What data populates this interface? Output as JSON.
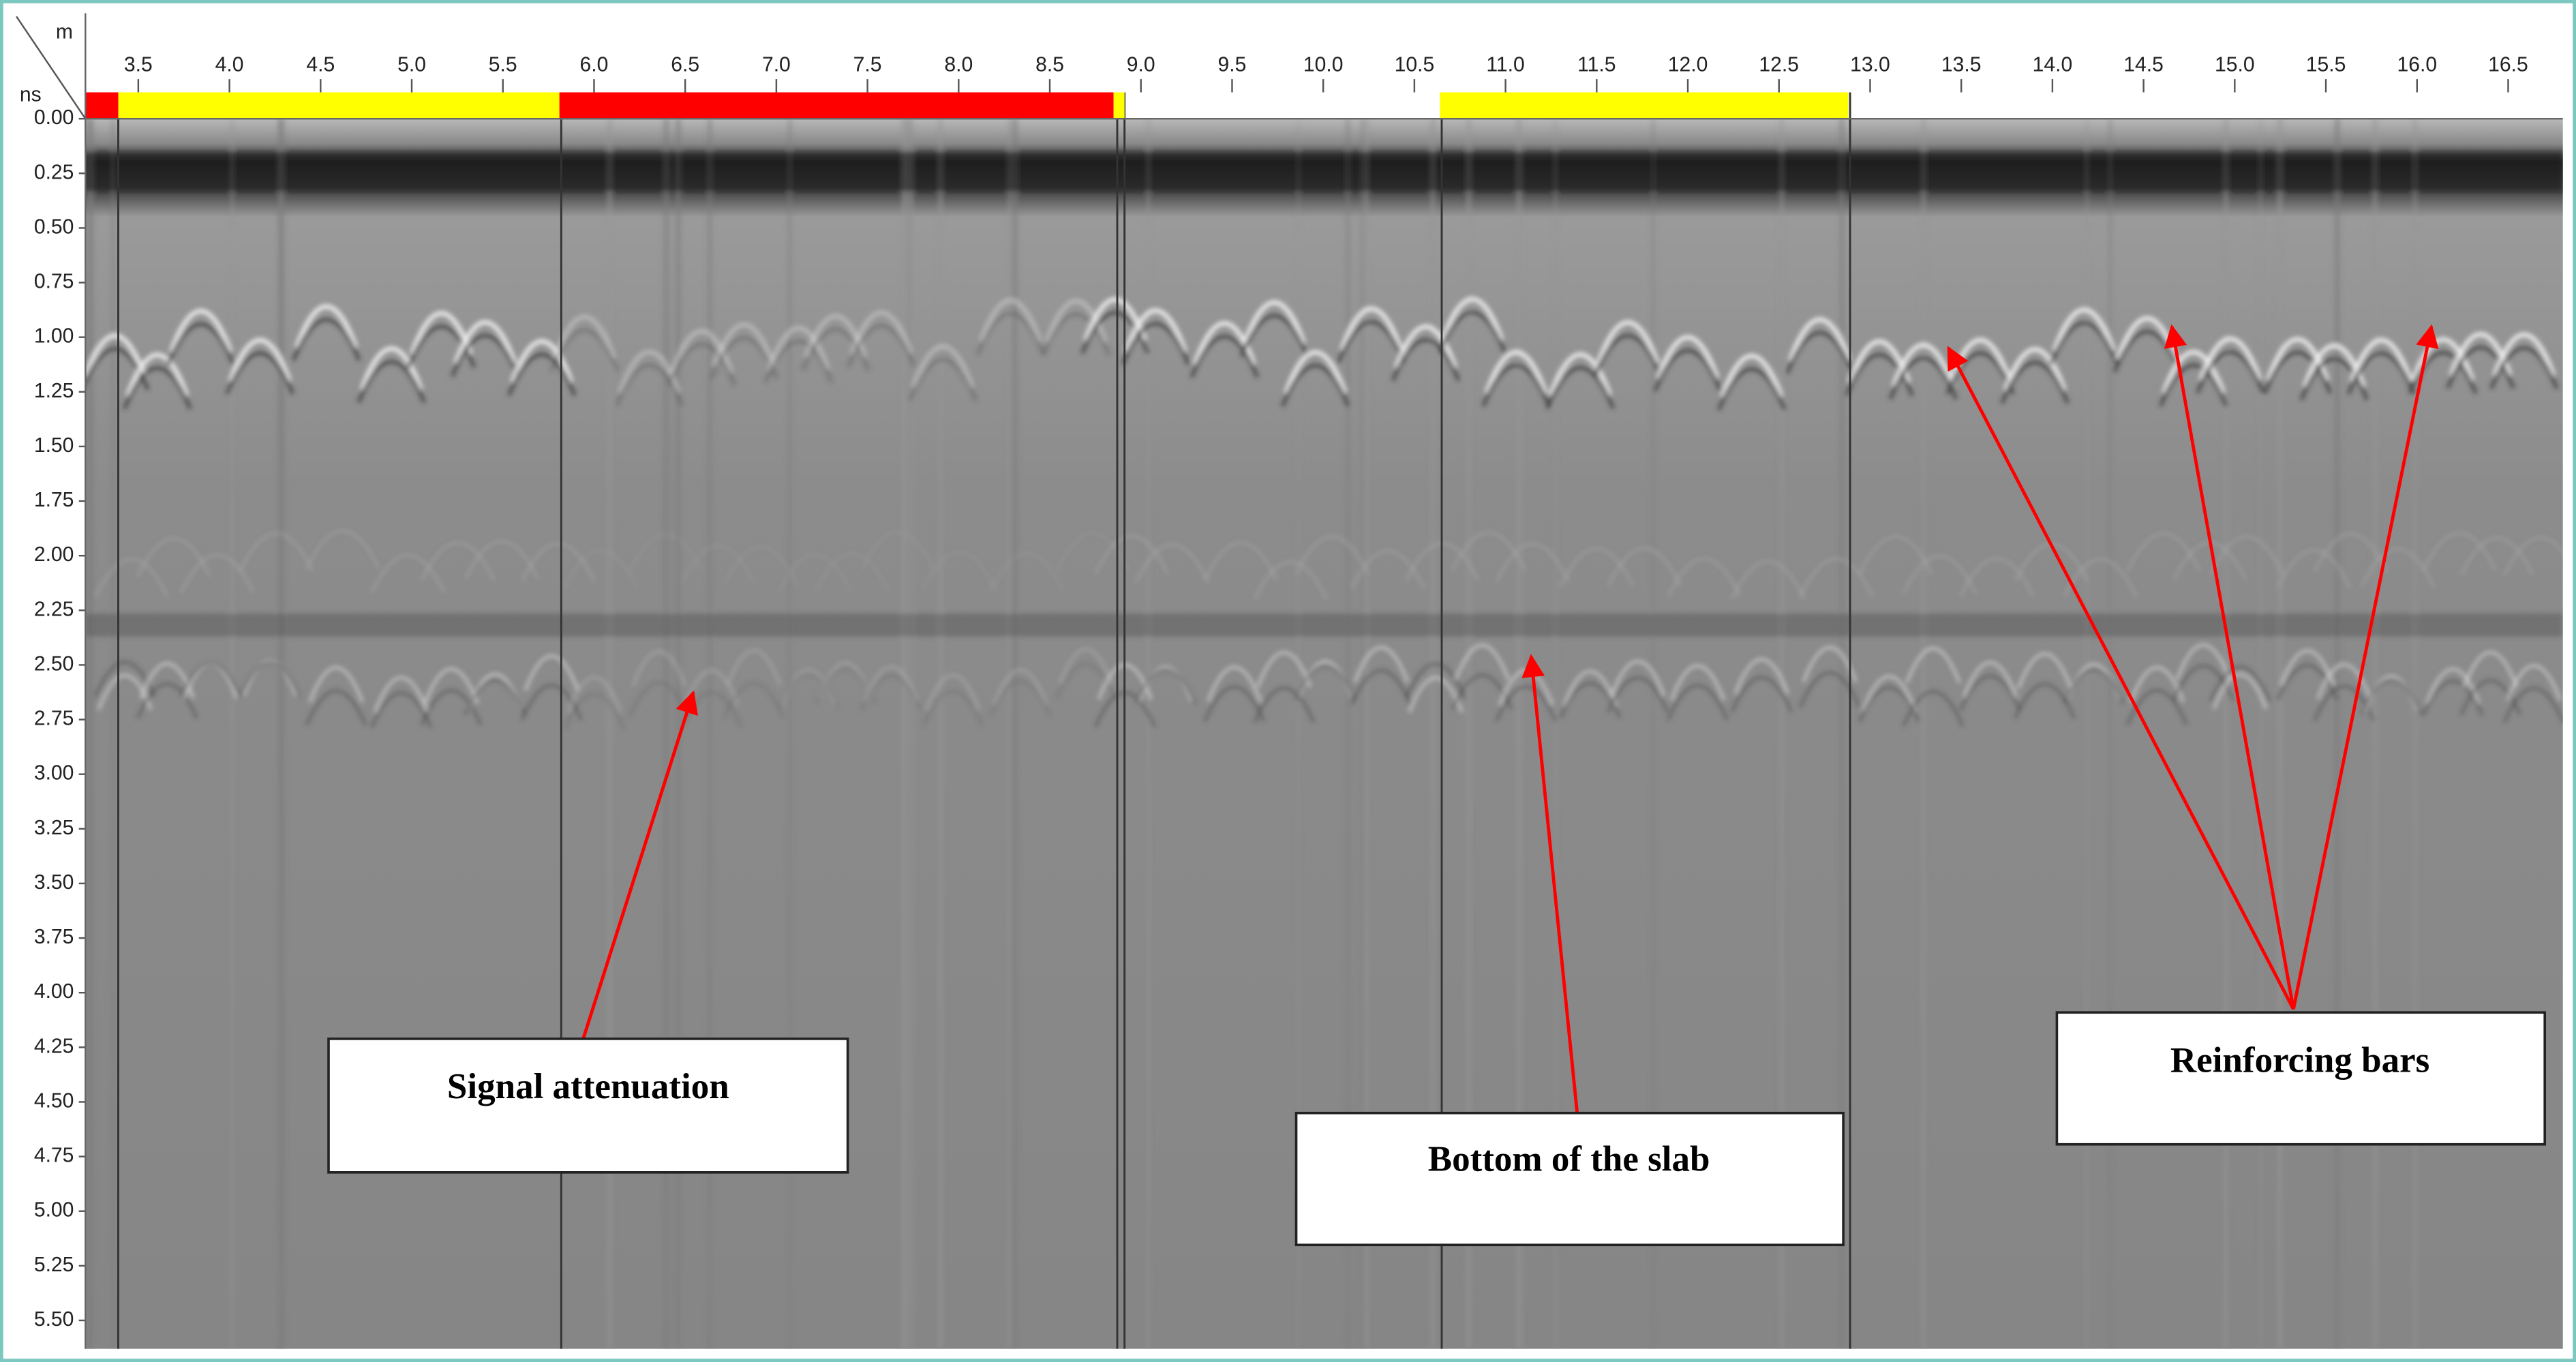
{
  "chart_data": {
    "type": "radargram",
    "x_unit_label": "m",
    "y_unit_label": "ns",
    "xlim": [
      3.21,
      16.8
    ],
    "xticks": [
      {
        "value": 3.5,
        "label": "3.5"
      },
      {
        "value": 4,
        "label": "4.0"
      },
      {
        "value": 4.5,
        "label": "4.5"
      },
      {
        "value": 5,
        "label": "5.0"
      },
      {
        "value": 5.5,
        "label": "5.5"
      },
      {
        "value": 6,
        "label": "6.0"
      },
      {
        "value": 6.5,
        "label": "6.5"
      },
      {
        "value": 7,
        "label": "7.0"
      },
      {
        "value": 7.5,
        "label": "7.5"
      },
      {
        "value": 8,
        "label": "8.0"
      },
      {
        "value": 8.5,
        "label": "8.5"
      },
      {
        "value": 9,
        "label": "9.0"
      },
      {
        "value": 9.5,
        "label": "9.5"
      },
      {
        "value": 10,
        "label": "10.0"
      },
      {
        "value": 10.5,
        "label": "10.5"
      },
      {
        "value": 11,
        "label": "11.0"
      },
      {
        "value": 11.5,
        "label": "11.5"
      },
      {
        "value": 12,
        "label": "12.0"
      },
      {
        "value": 12.5,
        "label": "12.5"
      },
      {
        "value": 13,
        "label": "13.0"
      },
      {
        "value": 13.5,
        "label": "13.5"
      },
      {
        "value": 14,
        "label": "14.0"
      },
      {
        "value": 14.5,
        "label": "14.5"
      },
      {
        "value": 15,
        "label": "15.0"
      },
      {
        "value": 15.5,
        "label": "15.5"
      },
      {
        "value": 16,
        "label": "16.0"
      },
      {
        "value": 16.5,
        "label": "16.5"
      }
    ],
    "ylim": [
      0,
      5.63
    ],
    "yticks": [
      {
        "value": 0,
        "label": "0.00"
      },
      {
        "value": 0.25,
        "label": "0.25"
      },
      {
        "value": 0.5,
        "label": "0.50"
      },
      {
        "value": 0.75,
        "label": "0.75"
      },
      {
        "value": 1,
        "label": "1.00"
      },
      {
        "value": 1.25,
        "label": "1.25"
      },
      {
        "value": 1.5,
        "label": "1.50"
      },
      {
        "value": 1.75,
        "label": "1.75"
      },
      {
        "value": 2,
        "label": "2.00"
      },
      {
        "value": 2.25,
        "label": "2.25"
      },
      {
        "value": 2.5,
        "label": "2.50"
      },
      {
        "value": 2.75,
        "label": "2.75"
      },
      {
        "value": 3,
        "label": "3.00"
      },
      {
        "value": 3.25,
        "label": "3.25"
      },
      {
        "value": 3.5,
        "label": "3.50"
      },
      {
        "value": 3.75,
        "label": "3.75"
      },
      {
        "value": 4,
        "label": "4.00"
      },
      {
        "value": 4.25,
        "label": "4.25"
      },
      {
        "value": 4.5,
        "label": "4.50"
      },
      {
        "value": 4.75,
        "label": "4.75"
      },
      {
        "value": 5,
        "label": "5.00"
      },
      {
        "value": 5.25,
        "label": "5.25"
      },
      {
        "value": 5.5,
        "label": "5.50"
      }
    ],
    "quality_bar": [
      {
        "start": 3.21,
        "end": 3.39,
        "color": "#ff0000"
      },
      {
        "start": 3.39,
        "end": 5.81,
        "color": "#ffff00"
      },
      {
        "start": 5.81,
        "end": 8.85,
        "color": "#ff0000"
      },
      {
        "start": 8.85,
        "end": 8.91,
        "color": "#ffff00"
      },
      {
        "start": 10.64,
        "end": 12.88,
        "color": "#ffff00"
      }
    ],
    "section_lines": [
      3.39,
      5.82,
      8.87,
      8.91,
      10.65,
      12.89
    ],
    "annotations": [
      "Signal attenuation",
      "Bottom of the slab",
      "Reinforcing bars"
    ]
  }
}
